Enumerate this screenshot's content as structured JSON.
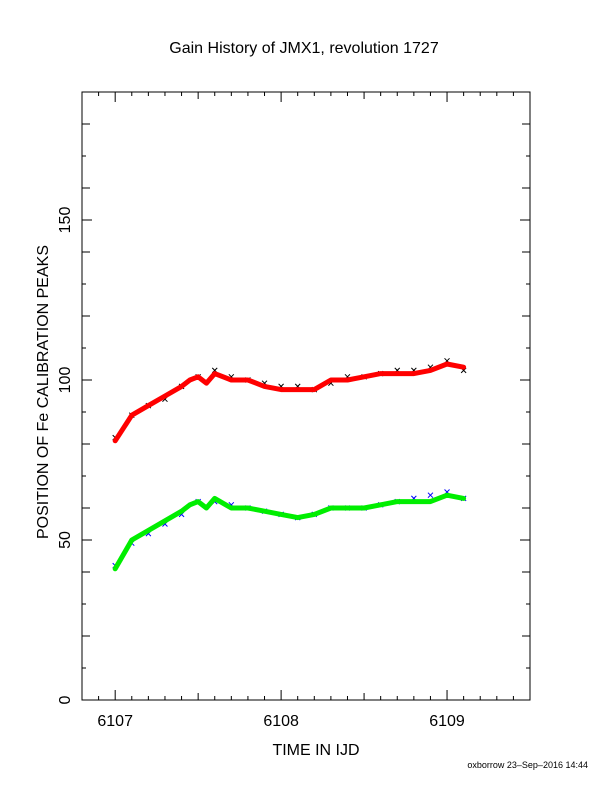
{
  "chart_data": {
    "type": "scatter",
    "title": "Gain History of JMX1, revolution 1727",
    "xlabel": "TIME IN IJD",
    "ylabel": "POSITION OF Fe CALIBRATION PEAKS",
    "xlim": [
      6106.8,
      6109.5
    ],
    "ylim": [
      0,
      190
    ],
    "x_ticks": [
      6107,
      6108,
      6109
    ],
    "x_tick_labels": [
      "6107",
      "6108",
      "6109"
    ],
    "y_ticks": [
      0,
      50,
      100,
      150
    ],
    "y_tick_labels": [
      "0",
      "50",
      "100",
      "150"
    ],
    "grid": false,
    "series": [
      {
        "color": "#000000",
        "marker": "x",
        "x": [
          6107.0,
          6107.1,
          6107.2,
          6107.3,
          6107.4,
          6107.5,
          6107.6,
          6107.7,
          6107.8,
          6107.9,
          6108.0,
          6108.1,
          6108.2,
          6108.3,
          6108.4,
          6108.5,
          6108.6,
          6108.7,
          6108.8,
          6108.9,
          6109.0,
          6109.1
        ],
        "y": [
          82,
          89,
          92,
          94,
          98,
          101,
          103,
          101,
          100,
          99,
          98,
          98,
          97,
          99,
          101,
          101,
          102,
          103,
          103,
          104,
          106,
          103
        ]
      },
      {
        "color": "#ff0000",
        "marker": "line",
        "x": [
          6107.0,
          6107.1,
          6107.2,
          6107.3,
          6107.4,
          6107.45,
          6107.5,
          6107.55,
          6107.6,
          6107.7,
          6107.8,
          6107.9,
          6108.0,
          6108.1,
          6108.2,
          6108.3,
          6108.4,
          6108.5,
          6108.6,
          6108.7,
          6108.8,
          6108.9,
          6109.0,
          6109.1
        ],
        "y": [
          81,
          89,
          92,
          95,
          98,
          100,
          101,
          99,
          102,
          100,
          100,
          98,
          97,
          97,
          97,
          100,
          100,
          101,
          102,
          102,
          102,
          103,
          105,
          104
        ]
      },
      {
        "color": "#0000ff",
        "marker": "x",
        "x": [
          6107.0,
          6107.1,
          6107.2,
          6107.3,
          6107.4,
          6107.5,
          6107.6,
          6107.7,
          6107.8,
          6107.9,
          6108.0,
          6108.1,
          6108.2,
          6108.3,
          6108.4,
          6108.5,
          6108.6,
          6108.7,
          6108.8,
          6108.9,
          6109.0,
          6109.1
        ],
        "y": [
          42,
          49,
          52,
          55,
          58,
          62,
          62,
          61,
          60,
          59,
          58,
          57,
          58,
          60,
          60,
          60,
          61,
          62,
          63,
          64,
          65,
          63
        ]
      },
      {
        "color": "#00ee00",
        "marker": "line",
        "x": [
          6107.0,
          6107.1,
          6107.2,
          6107.3,
          6107.4,
          6107.45,
          6107.5,
          6107.55,
          6107.6,
          6107.7,
          6107.8,
          6107.9,
          6108.0,
          6108.1,
          6108.2,
          6108.3,
          6108.4,
          6108.5,
          6108.6,
          6108.7,
          6108.8,
          6108.9,
          6109.0,
          6109.1
        ],
        "y": [
          41,
          50,
          53,
          56,
          59,
          61,
          62,
          60,
          63,
          60,
          60,
          59,
          58,
          57,
          58,
          60,
          60,
          60,
          61,
          62,
          62,
          62,
          64,
          63
        ]
      }
    ]
  },
  "footer": "oxborrow 23–Sep–2016 14:44"
}
